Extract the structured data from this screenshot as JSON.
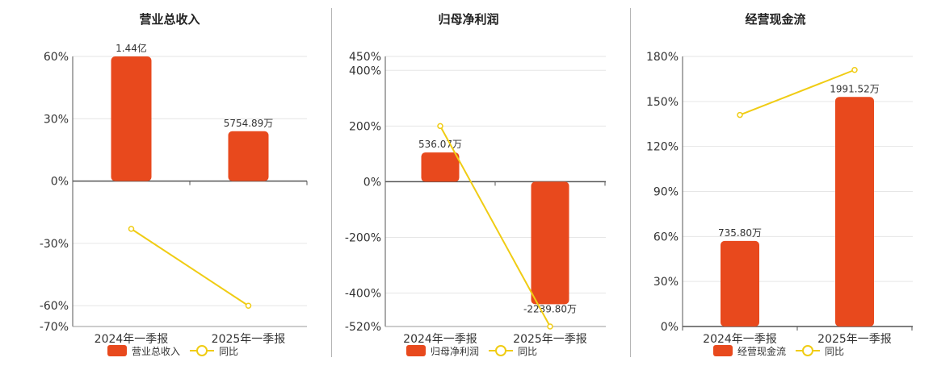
{
  "chart_data": [
    {
      "type": "bar",
      "title": "营业总收入",
      "categories": [
        "2024年一季报",
        "2025年一季报"
      ],
      "series": [
        {
          "name": "营业总收入",
          "kind": "bar",
          "values": [
            60,
            24
          ],
          "labels": [
            "1.44亿",
            "5754.89万"
          ]
        },
        {
          "name": "同比",
          "kind": "line",
          "values": [
            -23,
            -60
          ]
        }
      ],
      "ylim": [
        -70,
        60
      ],
      "yticks": [
        60,
        30,
        0,
        -30,
        -60,
        -70
      ],
      "ytick_labels": [
        "60%",
        "30%",
        "0%",
        "-30%",
        "-60%",
        "-70%"
      ],
      "grid": true,
      "legend": "bottom"
    },
    {
      "type": "bar",
      "title": "归母净利润",
      "categories": [
        "2024年一季报",
        "2025年一季报"
      ],
      "series": [
        {
          "name": "归母净利润",
          "kind": "bar",
          "values": [
            105,
            -440
          ],
          "labels": [
            "536.07万",
            "-2239.80万"
          ]
        },
        {
          "name": "同比",
          "kind": "line",
          "values": [
            200,
            -520
          ]
        }
      ],
      "ylim": [
        -520,
        450
      ],
      "yticks": [
        450,
        400,
        200,
        0,
        -200,
        -400,
        -520
      ],
      "ytick_labels": [
        "450%",
        "400%",
        "200%",
        "0%",
        "-200%",
        "-400%",
        "-520%"
      ],
      "grid": true,
      "legend": "bottom"
    },
    {
      "type": "bar",
      "title": "经营现金流",
      "categories": [
        "2024年一季报",
        "2025年一季报"
      ],
      "series": [
        {
          "name": "经营现金流",
          "kind": "bar",
          "values": [
            57,
            153
          ],
          "labels": [
            "735.80万",
            "1991.52万"
          ]
        },
        {
          "name": "同比",
          "kind": "line",
          "values": [
            141,
            171
          ]
        }
      ],
      "ylim": [
        0,
        180
      ],
      "yticks": [
        180,
        150,
        120,
        90,
        60,
        30,
        0
      ],
      "ytick_labels": [
        "180%",
        "150%",
        "120%",
        "90%",
        "60%",
        "30%",
        "0%"
      ],
      "grid": true,
      "legend": "bottom"
    }
  ],
  "colors": {
    "bar": "#e8491d",
    "line": "#f0cc14",
    "grid": "#e6e6e6",
    "axis": "#555555"
  }
}
